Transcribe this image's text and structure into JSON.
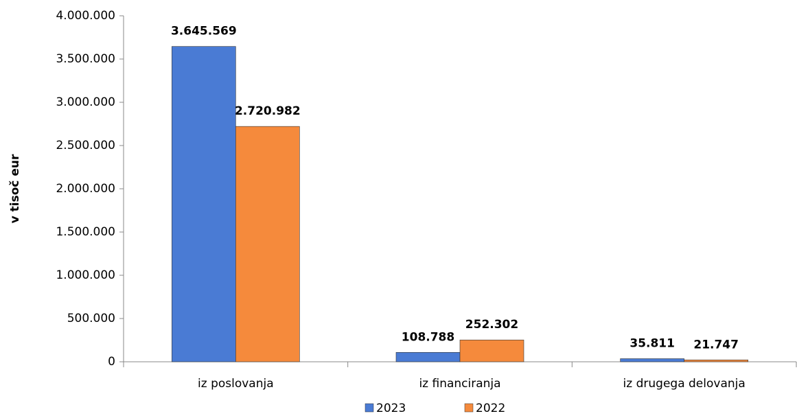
{
  "chart_data": {
    "type": "bar",
    "y_label": "v tisoč eur",
    "categories": [
      "iz poslovanja",
      "iz financiranja",
      "iz drugega delovanja"
    ],
    "series": [
      {
        "name": "2023",
        "color": "#4a7bd4",
        "values": [
          3645569,
          108788,
          35811
        ],
        "value_labels": [
          "3.645.569",
          "108.788",
          "35.811"
        ]
      },
      {
        "name": "2022",
        "color": "#f58a3c",
        "values": [
          2720982,
          252302,
          21747
        ],
        "value_labels": [
          "2.720.982",
          "252.302",
          "21.747"
        ]
      }
    ],
    "ylim": [
      0,
      4000000
    ],
    "yticks": [
      0,
      {
        "value": 500000,
        "label": "500.000"
      },
      {
        "value": 1000000,
        "label": "1.000.000"
      },
      {
        "value": 1500000,
        "label": "1.500.000"
      },
      {
        "value": 2000000,
        "label": "2.000.000"
      },
      {
        "value": 2500000,
        "label": "2.500.000"
      },
      {
        "value": 3000000,
        "label": "3.000.000"
      },
      {
        "value": 3500000,
        "label": "3.500.000"
      },
      {
        "value": 4000000,
        "label": "4.000.000"
      }
    ],
    "legend": "bottom"
  }
}
